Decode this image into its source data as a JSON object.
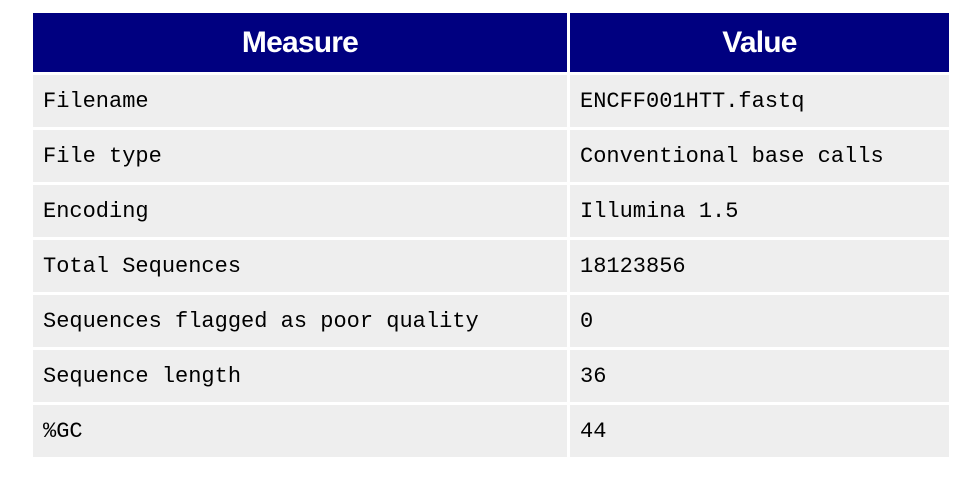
{
  "table": {
    "headers": {
      "measure": "Measure",
      "value": "Value"
    },
    "rows": [
      {
        "measure": "Filename",
        "value": "ENCFF001HTT.fastq"
      },
      {
        "measure": "File type",
        "value": "Conventional base calls"
      },
      {
        "measure": "Encoding",
        "value": "Illumina 1.5"
      },
      {
        "measure": "Total Sequences",
        "value": "18123856"
      },
      {
        "measure": "Sequences flagged as poor quality",
        "value": "0"
      },
      {
        "measure": "Sequence length",
        "value": "36"
      },
      {
        "measure": "%GC",
        "value": "44"
      }
    ],
    "colors": {
      "header_bg": "#000080",
      "header_text": "#ffffff",
      "cell_bg": "#eeeeee"
    }
  }
}
